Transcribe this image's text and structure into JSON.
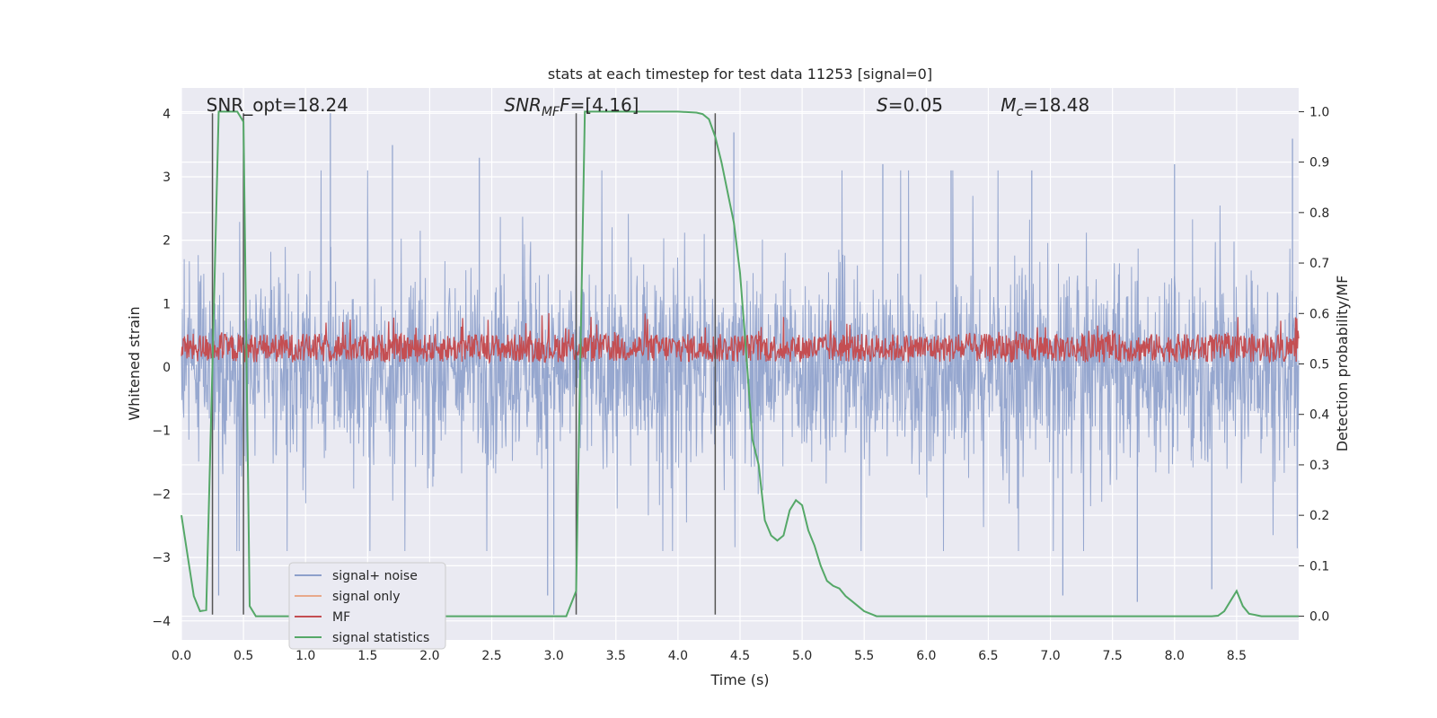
{
  "chart_data": {
    "type": "line",
    "title": "stats at each timestep for test data 11253 [signal=0]",
    "xlabel": "Time (s)",
    "ylabel_left": "Whitened strain",
    "ylabel_right": "Detection probability/MF",
    "xlim": [
      0,
      9
    ],
    "ylim_left": [
      -4.3,
      4.4
    ],
    "ylim_right": [
      -0.047,
      1.047
    ],
    "x_ticks": [
      0.0,
      0.5,
      1.0,
      1.5,
      2.0,
      2.5,
      3.0,
      3.5,
      4.0,
      4.5,
      5.0,
      5.5,
      6.0,
      6.5,
      7.0,
      7.5,
      8.0,
      8.5
    ],
    "x_tick_labels": [
      "0.0",
      "0.5",
      "1.0",
      "1.5",
      "2.0",
      "2.5",
      "3.0",
      "3.5",
      "4.0",
      "4.5",
      "5.0",
      "5.5",
      "6.0",
      "6.5",
      "7.0",
      "7.5",
      "8.0",
      "8.5"
    ],
    "y_left_ticks": [
      -4,
      -3,
      -2,
      -1,
      0,
      1,
      2,
      3,
      4
    ],
    "y_left_tick_labels": [
      "−4",
      "−3",
      "−2",
      "−1",
      "0",
      "1",
      "2",
      "3",
      "4"
    ],
    "y_right_ticks": [
      0.0,
      0.1,
      0.2,
      0.3,
      0.4,
      0.5,
      0.6,
      0.7,
      0.8,
      0.9,
      1.0
    ],
    "y_right_tick_labels": [
      "0.0",
      "0.1",
      "0.2",
      "0.3",
      "0.4",
      "0.5",
      "0.6",
      "0.7",
      "0.8",
      "0.9",
      "1.0"
    ],
    "grid": true,
    "annotations": [
      {
        "label": "SNR_opt=18.24",
        "x": 0.2
      },
      {
        "label": "SNR",
        "sub": "MF",
        "tail": "=[4.16]",
        "x": 2.6
      },
      {
        "label": "S",
        "tail": "=0.05",
        "x": 5.6
      },
      {
        "label": "M",
        "sub": "c",
        "tail": "=18.48",
        "x": 6.6
      }
    ],
    "vertical_lines_x": [
      0.25,
      0.5,
      3.18,
      4.3
    ],
    "legend": {
      "placement": "lower-left",
      "entries": [
        {
          "name": "signal+ noise",
          "color": "#8da0cb"
        },
        {
          "name": "signal only",
          "color": "#e8a88a"
        },
        {
          "name": "MF",
          "color": "#c44e52"
        },
        {
          "name": "signal statistics",
          "color": "#55a868"
        }
      ]
    },
    "series": [
      {
        "name": "signal+ noise",
        "axis": "left",
        "color": "#8da0cb",
        "note_envelope": "noisy trace filling roughly -2.6 to 2.5 with spikes to about ±4",
        "spikes_x": [
          0.3,
          1.2,
          1.7,
          2.4,
          2.95,
          3.0,
          4.45,
          5.65,
          6.2,
          6.85,
          7.1,
          7.7,
          8.0,
          8.3,
          8.95
        ],
        "spikes_y": [
          -3.6,
          4.0,
          3.5,
          3.3,
          -3.6,
          -3.9,
          3.7,
          3.2,
          3.1,
          3.1,
          -3.6,
          -3.7,
          3.2,
          -3.5,
          3.6
        ]
      },
      {
        "name": "MF",
        "axis": "left",
        "color": "#c44e52",
        "note_envelope": "noisy trace between 0.0 and 0.8"
      },
      {
        "name": "signal statistics",
        "axis": "right",
        "color": "#55a868",
        "x": [
          0.0,
          0.05,
          0.1,
          0.15,
          0.2,
          0.25,
          0.3,
          0.35,
          0.4,
          0.45,
          0.5,
          0.55,
          0.6,
          0.7,
          1.0,
          2.0,
          3.0,
          3.1,
          3.18,
          3.25,
          3.3,
          3.5,
          4.0,
          4.15,
          4.2,
          4.25,
          4.3,
          4.35,
          4.4,
          4.45,
          4.5,
          4.55,
          4.6,
          4.65,
          4.7,
          4.75,
          4.8,
          4.85,
          4.9,
          4.95,
          5.0,
          5.05,
          5.1,
          5.15,
          5.2,
          5.25,
          5.3,
          5.35,
          5.4,
          5.45,
          5.5,
          5.55,
          5.6,
          5.7,
          6.0,
          6.5,
          7.0,
          7.5,
          8.0,
          8.3,
          8.35,
          8.4,
          8.45,
          8.5,
          8.55,
          8.6,
          8.7,
          9.0
        ],
        "y": [
          0.2,
          0.12,
          0.04,
          0.01,
          0.012,
          0.5,
          1.0,
          1.0,
          1.0,
          1.0,
          0.98,
          0.02,
          0.0,
          0.0,
          0.0,
          0.0,
          0.0,
          0.0,
          0.05,
          1.0,
          1.0,
          1.0,
          1.0,
          0.998,
          0.995,
          0.985,
          0.95,
          0.9,
          0.84,
          0.78,
          0.68,
          0.52,
          0.35,
          0.3,
          0.19,
          0.16,
          0.15,
          0.16,
          0.21,
          0.23,
          0.22,
          0.17,
          0.14,
          0.1,
          0.07,
          0.06,
          0.055,
          0.04,
          0.03,
          0.02,
          0.01,
          0.005,
          0.0,
          0.0,
          0.0,
          0.0,
          0.0,
          0.0,
          0.0,
          0.0,
          0.001,
          0.01,
          0.03,
          0.05,
          0.02,
          0.005,
          0.0,
          0.0
        ]
      }
    ]
  }
}
